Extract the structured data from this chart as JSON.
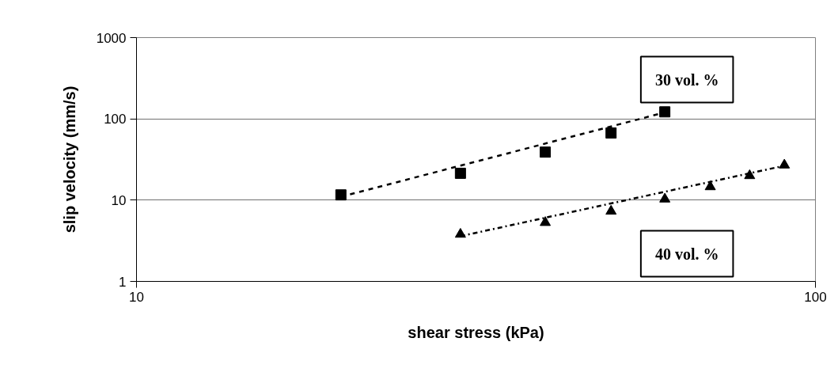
{
  "chart_data": {
    "type": "scatter",
    "xlabel": "shear stress (kPa)",
    "ylabel": "slip velocity (mm/s)",
    "log": "xy",
    "xlim": [
      10,
      100
    ],
    "xticks": [
      10,
      100
    ],
    "ylim": [
      1,
      1000
    ],
    "yticks": [
      1,
      10,
      100,
      1000
    ],
    "grid": "y",
    "series": [
      {
        "name": "30 vol. %",
        "marker": "square",
        "color": "#000000",
        "x": [
          20,
          30,
          40,
          50,
          60
        ],
        "values": [
          11.6,
          21.4,
          39,
          67,
          122
        ]
      },
      {
        "name": "40 vol. %",
        "marker": "triangle",
        "color": "#000000",
        "x": [
          30,
          40,
          50,
          60,
          70,
          80,
          90
        ],
        "values": [
          3.8,
          5.3,
          7.3,
          10.3,
          14.6,
          20,
          27
        ]
      },
      {
        "type": "line",
        "line_style": "dashed",
        "color": "#000000",
        "x": [
          20,
          60
        ],
        "values": [
          11,
          120
        ]
      },
      {
        "type": "line",
        "line_style": "dashdot",
        "color": "#000000",
        "x": [
          30,
          90
        ],
        "values": [
          3.6,
          26.5
        ]
      }
    ]
  }
}
